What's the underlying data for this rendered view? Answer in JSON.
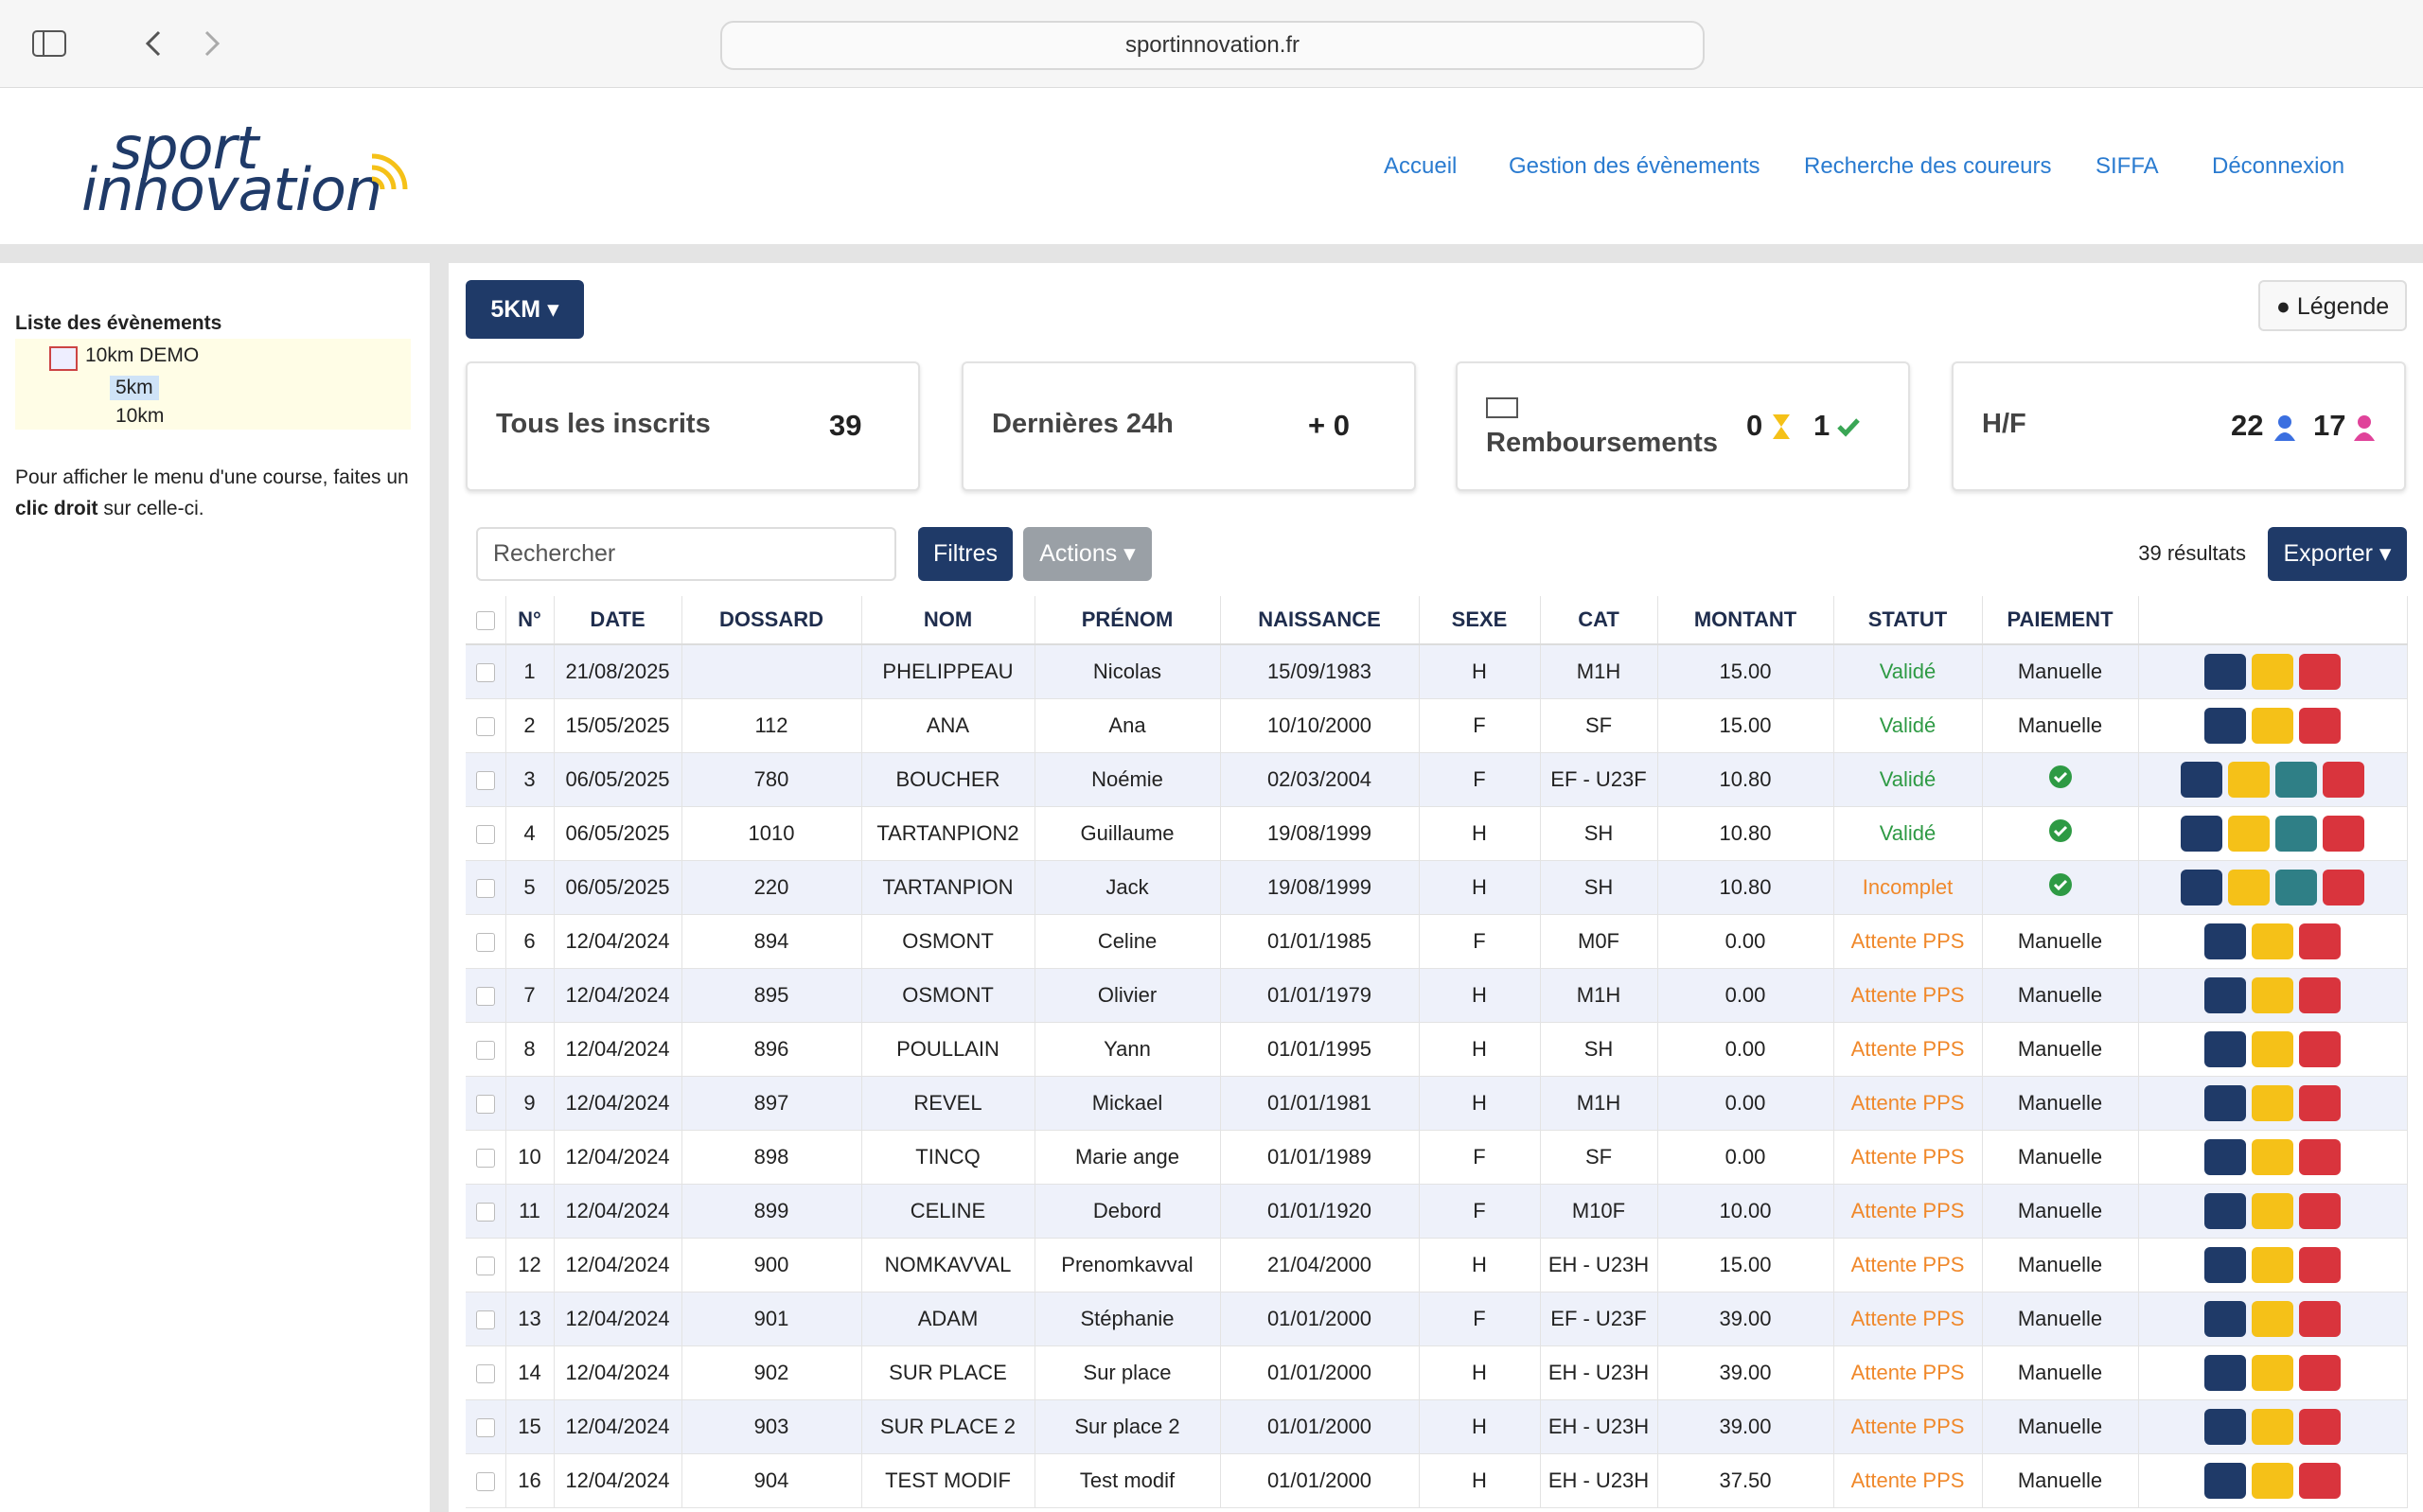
{
  "browser": {
    "url": "sportinnovation.fr"
  },
  "logo": {
    "line1": "sport",
    "line2": "innovation"
  },
  "nav": [
    "Accueil",
    "Gestion des évènements",
    "Recherche des coureurs",
    "SIFFA",
    "Déconnexion"
  ],
  "sidebar": {
    "title": "Liste des évènements",
    "tree": [
      "10km DEMO",
      "5km",
      "10km"
    ],
    "help": {
      "before": "Pour afficher le menu d'une course, faites un",
      "bold": "clic droit",
      "after": "sur celle-ci."
    }
  },
  "race_button": "5KM",
  "legend_button": "Légende",
  "cards": [
    {
      "label": "Tous les inscrits",
      "value": "39"
    },
    {
      "label": "Dernières 24h",
      "value": "+ 0"
    },
    {
      "label": "Remboursements",
      "values": [
        "0",
        "1"
      ]
    },
    {
      "label": "H/F",
      "values": [
        "22",
        "17"
      ]
    }
  ],
  "toolbar": {
    "search_placeholder": "Rechercher",
    "filters": "Filtres",
    "actions": "Actions",
    "results": "39 résultats",
    "export": "Exporter"
  },
  "table": {
    "columns": [
      "N°",
      "DATE",
      "DOSSARD",
      "NOM",
      "PRÉNOM",
      "NAISSANCE",
      "SEXE",
      "CAT",
      "MONTANT",
      "STATUT",
      "PAIEMENT"
    ],
    "status_colors": {
      "Validé": "#2e9a44",
      "Incomplet": "#f0882a",
      "Attente PPS": "#f0882a"
    },
    "rows": [
      [
        "1",
        "21/08/2025",
        null,
        "PHELIPPEAU",
        "Nicolas",
        "15/09/1983",
        "H",
        "M1H",
        "15.00",
        "Validé",
        "Manuelle"
      ],
      [
        "2",
        "15/05/2025",
        "112",
        "ANA",
        "Ana",
        "10/10/2000",
        "F",
        "SF",
        "15.00",
        "Validé",
        "Manuelle"
      ],
      [
        "3",
        "06/05/2025",
        "780",
        "BOUCHER",
        "Noémie",
        "02/03/2004",
        "F",
        "EF - U23F",
        "10.80",
        "Validé",
        null
      ],
      [
        "4",
        "06/05/2025",
        "1010",
        "TARTANPION2",
        "Guillaume",
        "19/08/1999",
        "H",
        "SH",
        "10.80",
        "Validé",
        null
      ],
      [
        "5",
        "06/05/2025",
        "220",
        "TARTANPION",
        "Jack",
        "19/08/1999",
        "H",
        "SH",
        "10.80",
        "Incomplet",
        null
      ],
      [
        "6",
        "12/04/2024",
        "894",
        "OSMONT",
        "Celine",
        "01/01/1985",
        "F",
        "M0F",
        "0.00",
        "Attente PPS",
        "Manuelle"
      ],
      [
        "7",
        "12/04/2024",
        "895",
        "OSMONT",
        "Olivier",
        "01/01/1979",
        "H",
        "M1H",
        "0.00",
        "Attente PPS",
        "Manuelle"
      ],
      [
        "8",
        "12/04/2024",
        "896",
        "POULLAIN",
        "Yann",
        "01/01/1995",
        "H",
        "SH",
        "0.00",
        "Attente PPS",
        "Manuelle"
      ],
      [
        "9",
        "12/04/2024",
        "897",
        "REVEL",
        "Mickael",
        "01/01/1981",
        "H",
        "M1H",
        "0.00",
        "Attente PPS",
        "Manuelle"
      ],
      [
        "10",
        "12/04/2024",
        "898",
        "TINCQ",
        "Marie ange",
        "01/01/1989",
        "F",
        "SF",
        "0.00",
        "Attente PPS",
        "Manuelle"
      ],
      [
        "11",
        "12/04/2024",
        "899",
        "CELINE",
        "Debord",
        "01/01/1920",
        "F",
        "M10F",
        "10.00",
        "Attente PPS",
        "Manuelle"
      ],
      [
        "12",
        "12/04/2024",
        "900",
        "NOMKAVVAL",
        "Prenomkavval",
        "21/04/2000",
        "H",
        "EH - U23H",
        "15.00",
        "Attente PPS",
        "Manuelle"
      ],
      [
        "13",
        "12/04/2024",
        "901",
        "ADAM",
        "Stéphanie",
        "01/01/2000",
        "F",
        "EF - U23F",
        "39.00",
        "Attente PPS",
        "Manuelle"
      ],
      [
        "14",
        "12/04/2024",
        "902",
        "SUR PLACE",
        "Sur place",
        "01/01/2000",
        "H",
        "EH - U23H",
        "39.00",
        "Attente PPS",
        "Manuelle"
      ],
      [
        "15",
        "12/04/2024",
        "903",
        "SUR PLACE 2",
        "Sur place 2",
        "01/01/2000",
        "H",
        "EH - U23H",
        "39.00",
        "Attente PPS",
        "Manuelle"
      ],
      [
        "16",
        "12/04/2024",
        "904",
        "TEST MODIF",
        "Test modif",
        "01/01/2000",
        "H",
        "EH - U23H",
        "37.50",
        "Attente PPS",
        "Manuelle"
      ]
    ]
  }
}
